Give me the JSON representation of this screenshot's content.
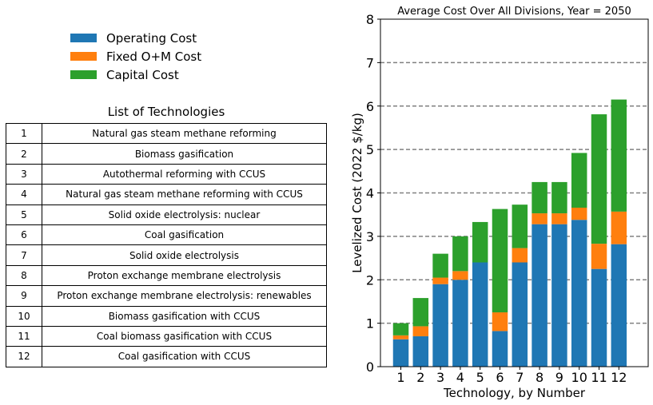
{
  "legend": {
    "items": [
      {
        "label": "Operating Cost",
        "color": "#1f77b4"
      },
      {
        "label": "Fixed O+M Cost",
        "color": "#ff7f0e"
      },
      {
        "label": "Capital Cost",
        "color": "#2ca02c"
      }
    ]
  },
  "technologies": {
    "title": "List of Technologies",
    "rows": [
      {
        "num": "1",
        "name": "Natural gas steam methane reforming"
      },
      {
        "num": "2",
        "name": "Biomass gasification"
      },
      {
        "num": "3",
        "name": "Autothermal reforming with CCUS"
      },
      {
        "num": "4",
        "name": "Natural gas steam methane reforming with CCUS"
      },
      {
        "num": "5",
        "name": "Solid oxide electrolysis: nuclear"
      },
      {
        "num": "6",
        "name": "Coal gasification"
      },
      {
        "num": "7",
        "name": "Solid oxide electrolysis"
      },
      {
        "num": "8",
        "name": "Proton exchange membrane electrolysis"
      },
      {
        "num": "9",
        "name": "Proton exchange membrane electrolysis: renewables"
      },
      {
        "num": "10",
        "name": "Biomass gasification with CCUS"
      },
      {
        "num": "11",
        "name": "Coal biomass gasification with CCUS"
      },
      {
        "num": "12",
        "name": "Coal gasification with CCUS"
      }
    ]
  },
  "chart_data": {
    "type": "bar",
    "stacked": true,
    "title": "Average Cost Over All Divisions, Year = 2050",
    "xlabel": "Technology, by Number",
    "ylabel": "Levelized Cost (2022 $/kg)",
    "categories": [
      "1",
      "2",
      "3",
      "4",
      "5",
      "6",
      "7",
      "8",
      "9",
      "10",
      "11",
      "12"
    ],
    "ylim": [
      0,
      8
    ],
    "yticks": [
      0,
      1,
      2,
      3,
      4,
      5,
      6,
      7,
      8
    ],
    "grid": "horizontal dashed",
    "series": [
      {
        "name": "Operating Cost",
        "color": "#1f77b4",
        "values": [
          0.63,
          0.7,
          1.9,
          2.0,
          2.4,
          0.82,
          2.4,
          3.28,
          3.28,
          3.38,
          2.25,
          2.82
        ]
      },
      {
        "name": "Fixed O+M Cost",
        "color": "#ff7f0e",
        "values": [
          0.09,
          0.23,
          0.15,
          0.2,
          0.0,
          0.43,
          0.33,
          0.25,
          0.25,
          0.28,
          0.58,
          0.75
        ]
      },
      {
        "name": "Capital Cost",
        "color": "#2ca02c",
        "values": [
          0.28,
          0.65,
          0.55,
          0.8,
          0.93,
          2.38,
          1.0,
          0.72,
          0.72,
          1.26,
          2.98,
          2.58
        ]
      }
    ]
  }
}
